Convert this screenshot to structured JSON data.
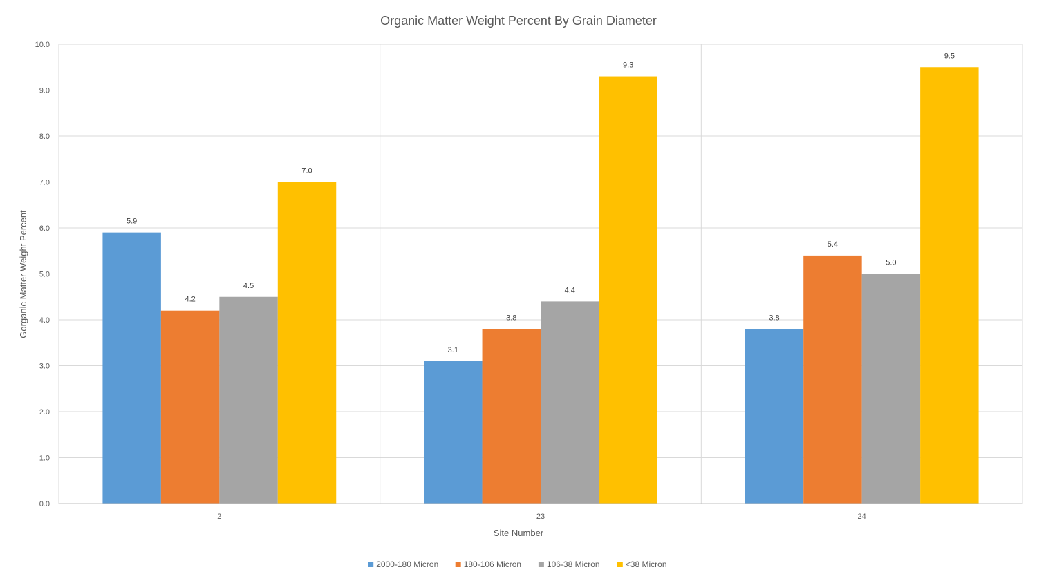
{
  "chart_data": {
    "type": "bar",
    "title": "Organic Matter Weight Percent By Grain Diameter",
    "xlabel": "Site Number",
    "ylabel": "Gorganic Matter Weight Percent",
    "categories": [
      "2",
      "23",
      "24"
    ],
    "series": [
      {
        "name": "2000-180 Micron",
        "color": "#5B9BD5",
        "values": [
          5.9,
          3.1,
          3.8
        ]
      },
      {
        "name": "180-106 Micron",
        "color": "#ED7D31",
        "values": [
          4.2,
          3.8,
          5.4
        ]
      },
      {
        "name": "106-38 Micron",
        "color": "#A5A5A5",
        "values": [
          4.5,
          4.4,
          5.0
        ]
      },
      {
        "name": "<38 Micron",
        "color": "#FFC000",
        "values": [
          7.0,
          9.3,
          9.5
        ]
      }
    ],
    "ylim": [
      0,
      10
    ],
    "yticks": [
      "0.0",
      "1.0",
      "2.0",
      "3.0",
      "4.0",
      "5.0",
      "6.0",
      "7.0",
      "8.0",
      "9.0",
      "10.0"
    ],
    "grid": true,
    "legend_position": "bottom"
  }
}
